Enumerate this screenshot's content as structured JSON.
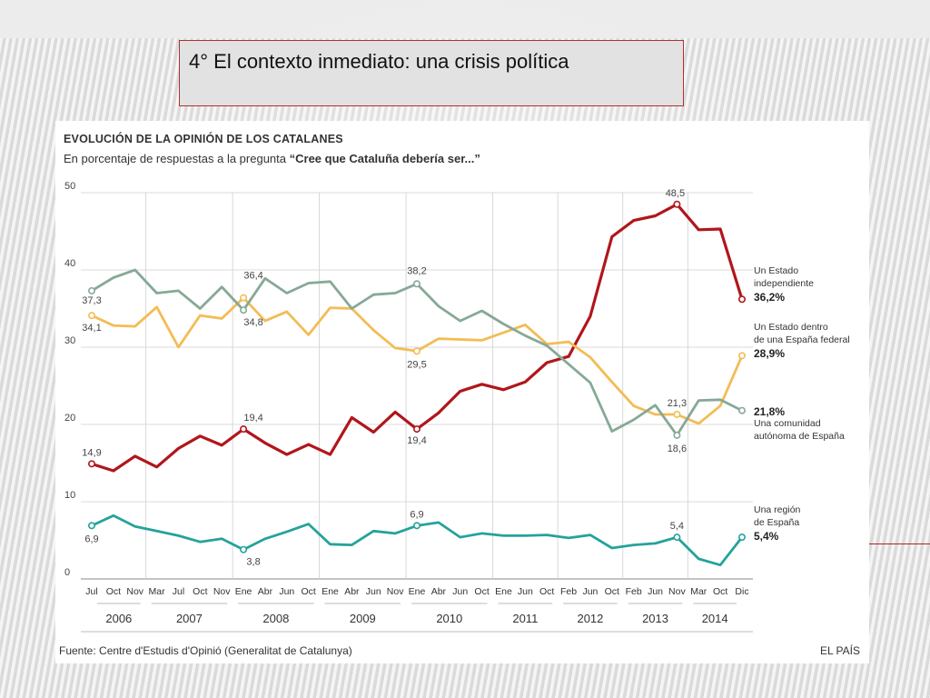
{
  "slide": {
    "title": "4° El contexto inmediato: una crisis política"
  },
  "colors": {
    "independiente": "#b0161b",
    "federal": "#f3bc55",
    "autonomia": "#86a996",
    "region": "#25a29c"
  },
  "chart_data": {
    "type": "line",
    "title": "EVOLUCIÓN DE LA OPINIÓN DE LOS CATALANES",
    "subtitle_prefix": "En porcentaje de respuestas a la pregunta ",
    "subtitle_question": "“Cree que Cataluña debería ser...”",
    "ylim": [
      0,
      50
    ],
    "yticks": [
      "0",
      "10",
      "20",
      "30",
      "40",
      "50"
    ],
    "grid": true,
    "x_labels": [
      "Jul",
      "Oct",
      "Nov",
      "Mar",
      "Jul",
      "Oct",
      "Nov",
      "Ene",
      "Abr",
      "Jun",
      "Oct",
      "Ene",
      "Abr",
      "Jun",
      "Nov",
      "Ene",
      "Abr",
      "Jun",
      "Oct",
      "Ene",
      "Jun",
      "Oct",
      "Feb",
      "Jun",
      "Oct",
      "Feb",
      "Jun",
      "Nov",
      "Mar",
      "Oct",
      "Dic"
    ],
    "years": [
      "2006",
      "2007",
      "2008",
      "2009",
      "2010",
      "2011",
      "2012",
      "2013",
      "2014"
    ],
    "series": [
      {
        "key": "independiente",
        "name": "Un Estado independiente",
        "legend_lines": [
          "Un Estado",
          "independiente"
        ],
        "final_label": "36,2%",
        "values": [
          14.9,
          14.0,
          15.9,
          14.5,
          16.9,
          18.5,
          17.3,
          19.4,
          17.6,
          16.1,
          17.4,
          16.1,
          20.9,
          19.0,
          21.6,
          19.4,
          21.5,
          24.3,
          25.2,
          24.5,
          25.5,
          28.0,
          28.8,
          34.0,
          44.3,
          46.4,
          47.0,
          48.5,
          45.2,
          45.3,
          36.2
        ],
        "labels": [
          {
            "i": 0,
            "text": "14,9"
          },
          {
            "i": 7,
            "text": "19,4"
          },
          {
            "i": 15,
            "text": "19,4"
          },
          {
            "i": 27,
            "text": "48,5"
          }
        ]
      },
      {
        "key": "federal",
        "name": "Un Estado dentro de una España federal",
        "legend_lines": [
          "Un Estado dentro",
          "de una España federal"
        ],
        "final_label": "28,9%",
        "values": [
          34.1,
          32.8,
          32.7,
          35.2,
          30.0,
          34.1,
          33.7,
          36.4,
          33.4,
          34.6,
          31.6,
          35.1,
          35.0,
          32.2,
          29.9,
          29.5,
          31.1,
          31.0,
          30.9,
          31.9,
          32.9,
          30.4,
          30.7,
          28.7,
          25.5,
          22.4,
          21.3,
          21.3,
          20.1,
          22.4,
          28.9
        ],
        "labels": [
          {
            "i": 0,
            "text": "34,1"
          },
          {
            "i": 7,
            "text": "36,4"
          },
          {
            "i": 15,
            "text": "29,5"
          },
          {
            "i": 27,
            "text": "21,3"
          }
        ]
      },
      {
        "key": "autonomia",
        "name": "Una comunidad autónoma de España",
        "legend_lines": [
          "Una comunidad",
          "autónoma de España"
        ],
        "final_label": "21,8%",
        "values": [
          37.3,
          39.0,
          40.0,
          37.0,
          37.3,
          35.0,
          37.8,
          34.8,
          38.9,
          37.0,
          38.3,
          38.5,
          35.0,
          36.8,
          37.0,
          38.2,
          35.3,
          33.4,
          34.7,
          33.0,
          31.5,
          30.2,
          27.8,
          25.4,
          19.1,
          20.6,
          22.5,
          18.6,
          23.1,
          23.2,
          21.8
        ],
        "labels": [
          {
            "i": 0,
            "text": "37,3"
          },
          {
            "i": 7,
            "text": "34,8"
          },
          {
            "i": 15,
            "text": "38,2"
          },
          {
            "i": 27,
            "text": "18,6"
          }
        ]
      },
      {
        "key": "region",
        "name": "Una región de España",
        "legend_lines": [
          "Una región",
          "de España"
        ],
        "final_label": "5,4%",
        "values": [
          6.9,
          8.2,
          6.8,
          6.2,
          5.6,
          4.8,
          5.2,
          3.8,
          5.2,
          6.1,
          7.1,
          4.5,
          4.4,
          6.2,
          5.9,
          6.9,
          7.3,
          5.4,
          5.9,
          5.6,
          5.6,
          5.7,
          5.3,
          5.7,
          4.0,
          4.4,
          4.6,
          5.4,
          2.6,
          1.8,
          5.4
        ],
        "labels": [
          {
            "i": 0,
            "text": "6,9"
          },
          {
            "i": 7,
            "text": "3,8"
          },
          {
            "i": 15,
            "text": "6,9"
          },
          {
            "i": 27,
            "text": "5,4"
          }
        ]
      }
    ],
    "source": "Fuente: Centre d'Estudis d'Opinió (Generalitat de Catalunya)",
    "credit": "EL PAÍS"
  }
}
